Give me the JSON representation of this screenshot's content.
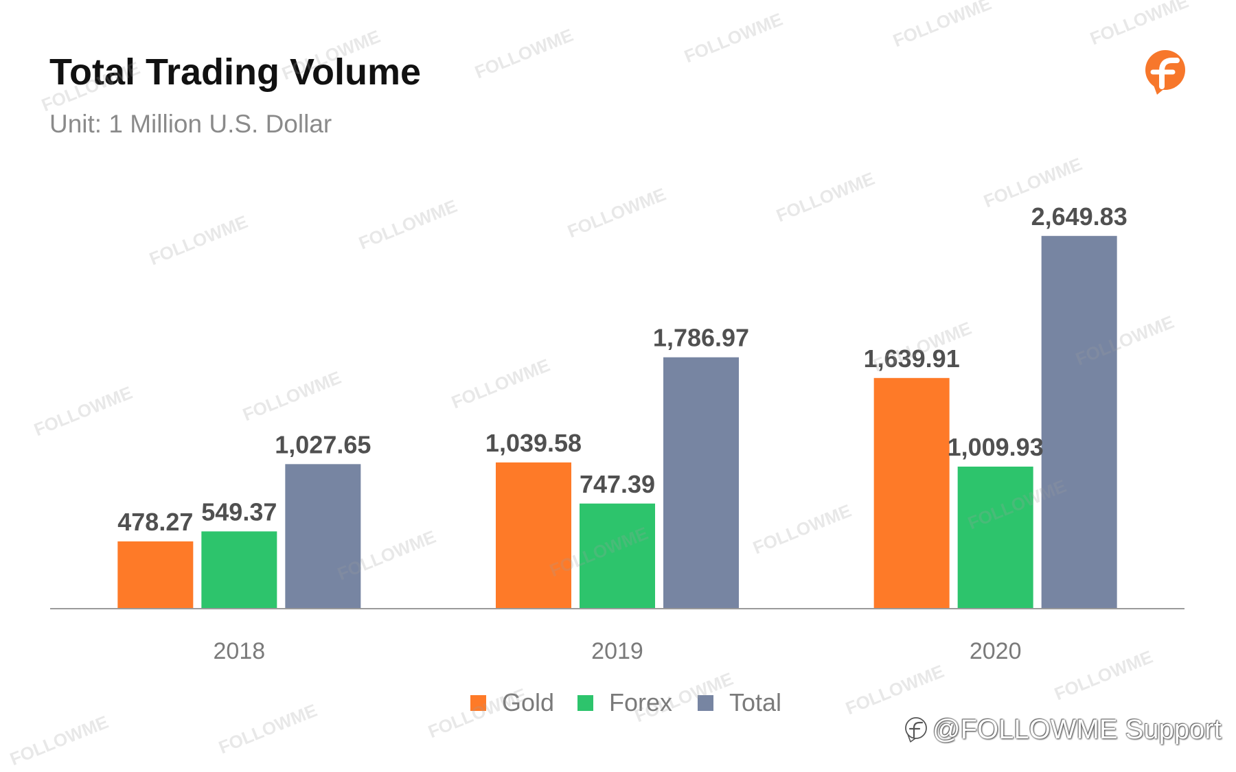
{
  "chart_data": {
    "type": "bar",
    "title": "Total Trading Volume",
    "subtitle": "Unit: 1 Million U.S. Dollar",
    "categories": [
      "2018",
      "2019",
      "2020"
    ],
    "series": [
      {
        "name": "Gold",
        "color": "#FE7A28",
        "values": [
          478.27,
          1039.58,
          1639.91
        ],
        "labels": [
          "478.27",
          "1,039.58",
          "1,639.91"
        ]
      },
      {
        "name": "Forex",
        "color": "#2DC46C",
        "values": [
          549.37,
          747.39,
          1009.93
        ],
        "labels": [
          "549.37",
          "747.39",
          "1,009.93"
        ]
      },
      {
        "name": "Total",
        "color": "#7785A2",
        "values": [
          1027.65,
          1786.97,
          2649.83
        ],
        "labels": [
          "1,027.65",
          "1,786.97",
          "2,649.83"
        ]
      }
    ],
    "xlabel": "",
    "ylabel": "",
    "ylim": [
      0,
      3000
    ],
    "grid": false,
    "legend": "bottom-center"
  },
  "brand": {
    "logo_icon": "followme-logo-icon",
    "accent": "#F7772B"
  },
  "watermark": {
    "text": "FOLLOWME"
  },
  "footer": {
    "handle": "@FOLLOWME Support",
    "icon": "followme-outline-icon"
  }
}
